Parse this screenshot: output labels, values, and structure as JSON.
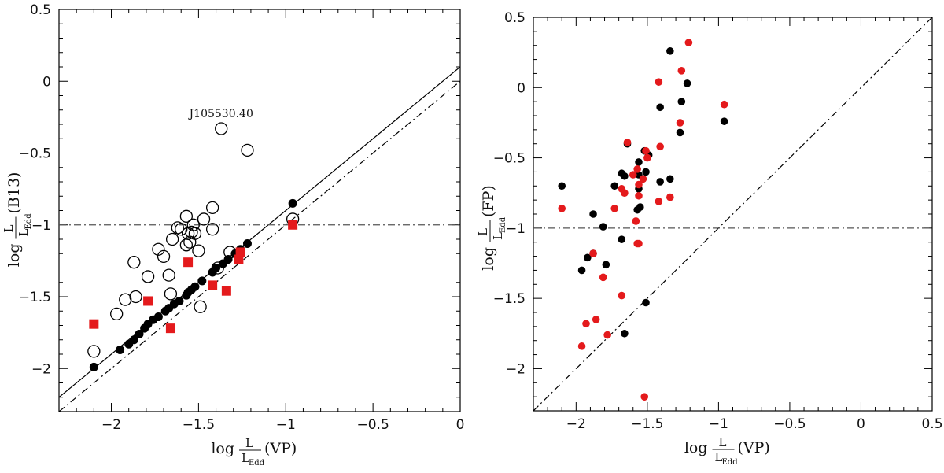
{
  "chart_data": [
    {
      "type": "scatter",
      "xlim": [
        -2.3,
        0
      ],
      "ylim": [
        -2.3,
        0.5
      ],
      "x_ticks": [
        -2,
        -1.5,
        -1,
        -0.5,
        0
      ],
      "y_ticks": [
        0.5,
        0,
        -0.5,
        -1,
        -1.5,
        -2
      ],
      "x_tick_labels": [
        "−2",
        "−1.5",
        "−1",
        "−0.5",
        "0"
      ],
      "y_tick_labels": [
        "0.5",
        "0",
        "−0.5",
        "−1",
        "−1.5",
        "−2"
      ],
      "xlabel": {
        "log": "log",
        "num": "L",
        "den": "L",
        "sub": "Edd",
        "paren": "(VP)"
      },
      "ylabel": {
        "log": "log",
        "num": "L",
        "den": "L",
        "sub": "Edd",
        "paren": "(B13)"
      },
      "grid": false,
      "reference_lines": [
        {
          "kind": "solid",
          "slope": 1,
          "intercept": 0.1
        },
        {
          "kind": "dashdot",
          "slope": 1,
          "intercept": 0
        },
        {
          "kind": "dashdot-horizontal",
          "y": -1
        }
      ],
      "annotations": [
        {
          "text": "J105530.40",
          "x": -1.37,
          "y": -0.25
        }
      ],
      "series": [
        {
          "marker": "filled-circle",
          "color": "#000000",
          "points": [
            [
              -2.1,
              -1.99
            ],
            [
              -1.95,
              -1.87
            ],
            [
              -1.9,
              -1.83
            ],
            [
              -1.87,
              -1.8
            ],
            [
              -1.84,
              -1.76
            ],
            [
              -1.81,
              -1.72
            ],
            [
              -1.79,
              -1.69
            ],
            [
              -1.76,
              -1.66
            ],
            [
              -1.73,
              -1.64
            ],
            [
              -1.69,
              -1.6
            ],
            [
              -1.67,
              -1.58
            ],
            [
              -1.64,
              -1.55
            ],
            [
              -1.61,
              -1.53
            ],
            [
              -1.57,
              -1.49
            ],
            [
              -1.56,
              -1.47
            ],
            [
              -1.54,
              -1.45
            ],
            [
              -1.52,
              -1.43
            ],
            [
              -1.48,
              -1.39
            ],
            [
              -1.42,
              -1.33
            ],
            [
              -1.4,
              -1.3
            ],
            [
              -1.36,
              -1.27
            ],
            [
              -1.33,
              -1.24
            ],
            [
              -1.29,
              -1.2
            ],
            [
              -1.26,
              -1.17
            ],
            [
              -1.22,
              -1.13
            ],
            [
              -0.96,
              -0.85
            ]
          ]
        },
        {
          "marker": "open-circle",
          "color": "#000000",
          "points": [
            [
              -1.37,
              -0.33
            ],
            [
              -1.22,
              -0.48
            ],
            [
              -2.1,
              -1.88
            ],
            [
              -1.97,
              -1.62
            ],
            [
              -1.92,
              -1.52
            ],
            [
              -1.86,
              -1.5
            ],
            [
              -1.87,
              -1.26
            ],
            [
              -1.79,
              -1.36
            ],
            [
              -1.73,
              -1.17
            ],
            [
              -1.7,
              -1.22
            ],
            [
              -1.67,
              -1.35
            ],
            [
              -1.66,
              -1.48
            ],
            [
              -1.65,
              -1.1
            ],
            [
              -1.62,
              -1.02
            ],
            [
              -1.6,
              -1.03
            ],
            [
              -1.57,
              -0.94
            ],
            [
              -1.56,
              -1.06
            ],
            [
              -1.55,
              -1.12
            ],
            [
              -1.57,
              -1.14
            ],
            [
              -1.54,
              -1.05
            ],
            [
              -1.53,
              -1.0
            ],
            [
              -1.52,
              -1.06
            ],
            [
              -1.5,
              -1.18
            ],
            [
              -1.47,
              -0.96
            ],
            [
              -1.42,
              -0.88
            ],
            [
              -1.42,
              -1.03
            ],
            [
              -1.39,
              -1.3
            ],
            [
              -1.49,
              -1.57
            ],
            [
              -1.32,
              -1.19
            ],
            [
              -0.96,
              -0.96
            ]
          ]
        },
        {
          "marker": "filled-square",
          "color": "#e41a1c",
          "points": [
            [
              -2.1,
              -1.69
            ],
            [
              -1.79,
              -1.53
            ],
            [
              -1.66,
              -1.72
            ],
            [
              -1.56,
              -1.26
            ],
            [
              -1.42,
              -1.42
            ],
            [
              -1.34,
              -1.46
            ],
            [
              -1.27,
              -1.24
            ],
            [
              -1.26,
              -1.19
            ],
            [
              -0.96,
              -1.0
            ]
          ]
        }
      ]
    },
    {
      "type": "scatter",
      "xlim": [
        -2.3,
        0.5
      ],
      "ylim": [
        -2.3,
        0.5
      ],
      "x_ticks": [
        -2,
        -1.5,
        -1,
        -0.5,
        0,
        0.5
      ],
      "y_ticks": [
        0.5,
        0,
        -0.5,
        -1,
        -1.5,
        -2
      ],
      "x_tick_labels": [
        "−2",
        "−1.5",
        "−1",
        "−0.5",
        "0",
        "0.5"
      ],
      "y_tick_labels": [
        "0.5",
        "0",
        "−0.5",
        "−1",
        "−1.5",
        "−2"
      ],
      "xlabel": {
        "log": "log",
        "num": "L",
        "den": "L",
        "sub": "Edd",
        "paren": "(VP)"
      },
      "ylabel": {
        "log": "log",
        "num": "L",
        "den": "L",
        "sub": "Edd",
        "paren": "(FP)"
      },
      "grid": false,
      "reference_lines": [
        {
          "kind": "dashdot",
          "slope": 1,
          "intercept": 0
        },
        {
          "kind": "dashdot-horizontal",
          "y": -1
        }
      ],
      "series": [
        {
          "marker": "filled-circle",
          "color": "#000000",
          "points": [
            [
              -1.34,
              0.26
            ],
            [
              -1.22,
              0.03
            ],
            [
              -1.26,
              -0.1
            ],
            [
              -1.41,
              -0.14
            ],
            [
              -0.96,
              -0.24
            ],
            [
              -1.27,
              -0.32
            ],
            [
              -1.64,
              -0.4
            ],
            [
              -1.52,
              -0.45
            ],
            [
              -1.49,
              -0.48
            ],
            [
              -1.56,
              -0.53
            ],
            [
              -1.51,
              -0.6
            ],
            [
              -1.68,
              -0.61
            ],
            [
              -1.66,
              -0.63
            ],
            [
              -1.56,
              -0.62
            ],
            [
              -1.41,
              -0.67
            ],
            [
              -1.34,
              -0.65
            ],
            [
              -1.73,
              -0.7
            ],
            [
              -1.56,
              -0.72
            ],
            [
              -2.1,
              -0.7
            ],
            [
              -1.55,
              -0.85
            ],
            [
              -1.57,
              -0.87
            ],
            [
              -1.88,
              -0.9
            ],
            [
              -1.81,
              -0.99
            ],
            [
              -1.68,
              -1.08
            ],
            [
              -1.88,
              -1.18
            ],
            [
              -1.92,
              -1.21
            ],
            [
              -1.79,
              -1.26
            ],
            [
              -1.96,
              -1.3
            ],
            [
              -1.51,
              -1.53
            ],
            [
              -1.66,
              -1.75
            ]
          ]
        },
        {
          "marker": "filled-circle",
          "color": "#e41a1c",
          "points": [
            [
              -1.21,
              0.32
            ],
            [
              -1.26,
              0.12
            ],
            [
              -1.42,
              0.04
            ],
            [
              -0.96,
              -0.12
            ],
            [
              -1.27,
              -0.25
            ],
            [
              -1.64,
              -0.39
            ],
            [
              -1.41,
              -0.42
            ],
            [
              -1.51,
              -0.45
            ],
            [
              -1.5,
              -0.5
            ],
            [
              -1.57,
              -0.58
            ],
            [
              -1.6,
              -0.62
            ],
            [
              -1.53,
              -0.65
            ],
            [
              -1.56,
              -0.69
            ],
            [
              -1.68,
              -0.72
            ],
            [
              -1.66,
              -0.75
            ],
            [
              -1.56,
              -0.77
            ],
            [
              -1.34,
              -0.78
            ],
            [
              -1.42,
              -0.81
            ],
            [
              -2.1,
              -0.86
            ],
            [
              -1.73,
              -0.86
            ],
            [
              -1.58,
              -0.95
            ],
            [
              -1.56,
              -1.11
            ],
            [
              -1.57,
              -1.11
            ],
            [
              -1.88,
              -1.18
            ],
            [
              -1.81,
              -1.35
            ],
            [
              -1.68,
              -1.48
            ],
            [
              -1.86,
              -1.65
            ],
            [
              -1.93,
              -1.68
            ],
            [
              -1.78,
              -1.76
            ],
            [
              -1.96,
              -1.84
            ],
            [
              -1.52,
              -2.2
            ]
          ]
        }
      ]
    }
  ]
}
